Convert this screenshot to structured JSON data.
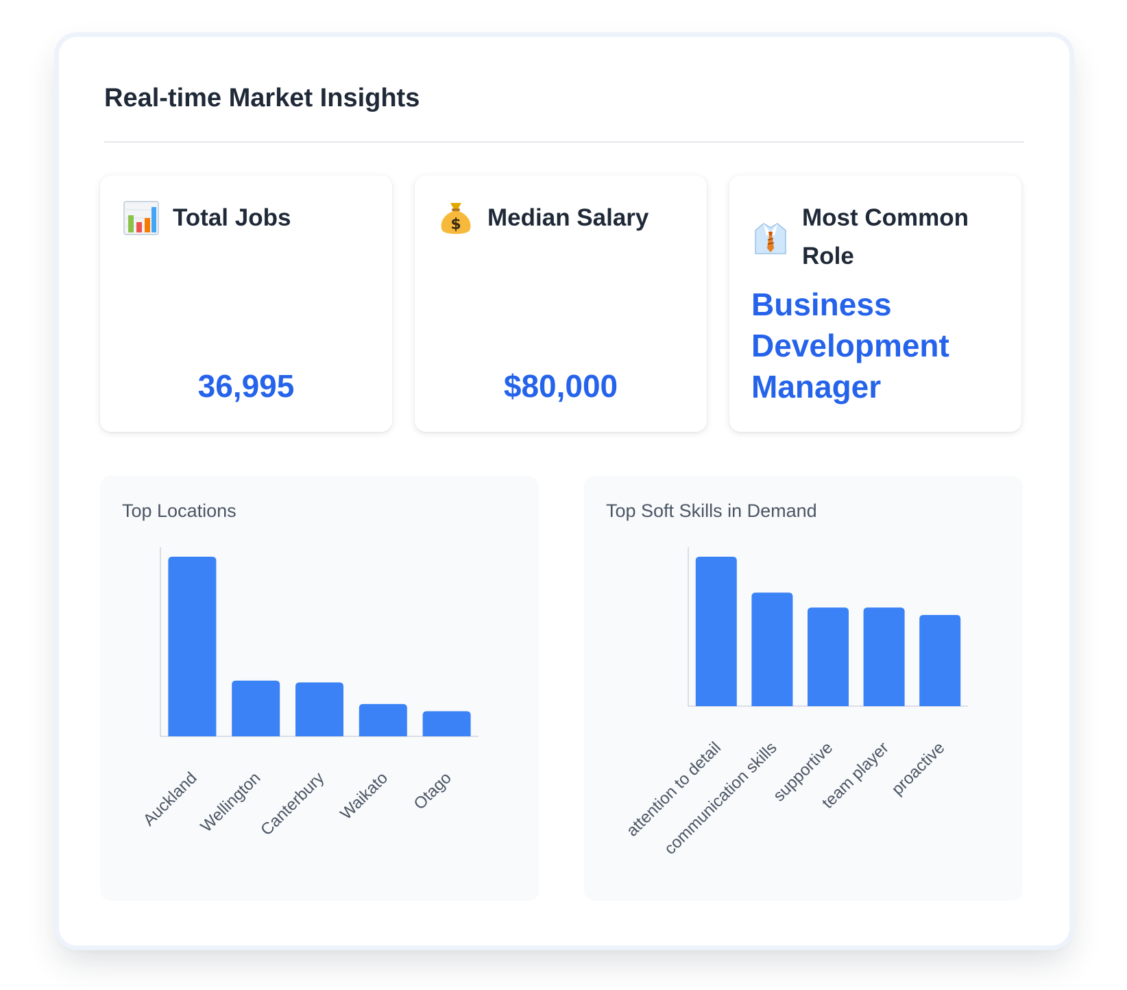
{
  "header": {
    "title": "Real-time Market Insights"
  },
  "stats": {
    "total_jobs": {
      "icon": "bar-chart-icon",
      "label": "Total Jobs",
      "value": "36,995"
    },
    "median_salary": {
      "icon": "money-bag-icon",
      "label": "Median Salary",
      "value": "$80,000"
    },
    "common_role": {
      "icon": "shirt-tie-icon",
      "label": "Most Common Role",
      "value": "Business Development Manager"
    }
  },
  "colors": {
    "accent": "#2563eb",
    "bar": "#3b82f6",
    "chart_bg": "#f8fafc"
  },
  "chart_data": [
    {
      "type": "bar",
      "title": "Top Locations",
      "categories": [
        "Auckland",
        "Wellington",
        "Canterbury",
        "Waikato",
        "Otago"
      ],
      "values": [
        100,
        31,
        30,
        18,
        14
      ],
      "grid": false,
      "legend": "none"
    },
    {
      "type": "bar",
      "title": "Top Soft Skills in Demand",
      "categories": [
        "attention to detail",
        "communication skills",
        "supportive",
        "team player",
        "proactive"
      ],
      "values": [
        100,
        76,
        66,
        66,
        61
      ],
      "grid": false,
      "legend": "none"
    }
  ]
}
